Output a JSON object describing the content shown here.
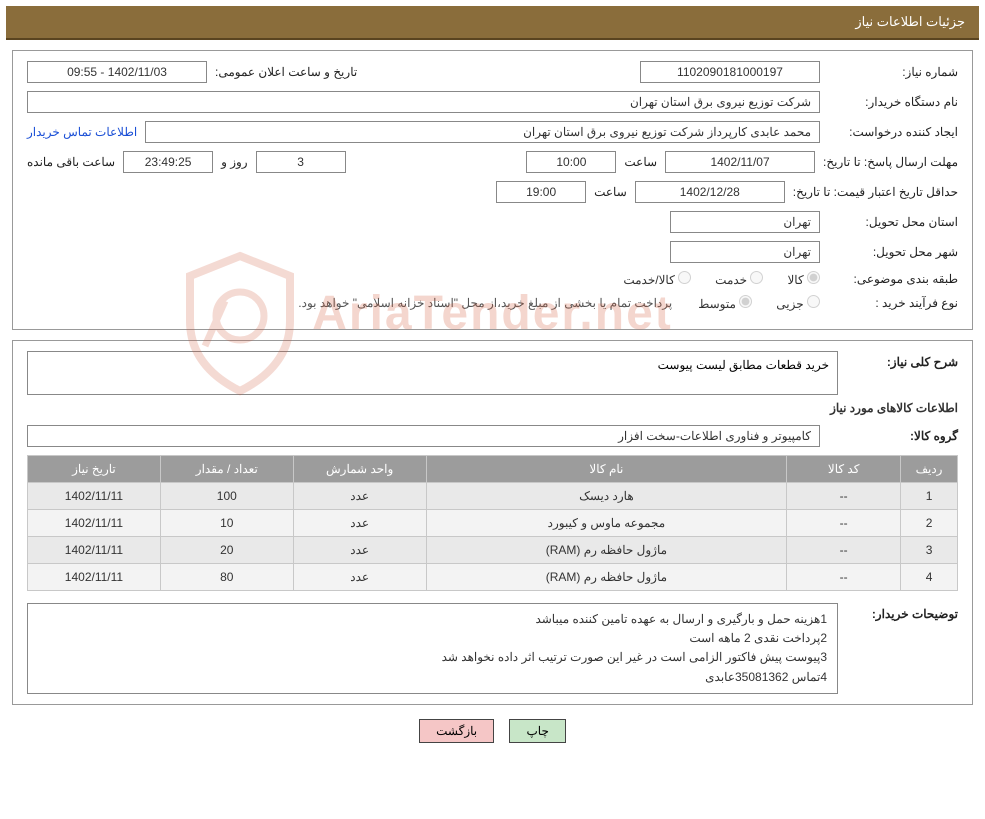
{
  "header": {
    "title": "جزئیات اطلاعات نیاز"
  },
  "fields": {
    "need_number_label": "شماره نیاز:",
    "need_number": "1102090181000197",
    "announce_label": "تاریخ و ساعت اعلان عمومی:",
    "announce_value": "1402/11/03 - 09:55",
    "buyer_org_label": "نام دستگاه خریدار:",
    "buyer_org": "شرکت توزیع نیروی برق استان تهران",
    "requester_label": "ایجاد کننده درخواست:",
    "requester": "محمد عابدی کارپرداز شرکت توزیع نیروی برق استان تهران",
    "contact_link": "اطلاعات تماس خریدار",
    "deadline_label": "مهلت ارسال پاسخ: تا تاریخ:",
    "deadline_date": "1402/11/07",
    "time_label": "ساعت",
    "deadline_time": "10:00",
    "days_and": "روز و",
    "days_value": "3",
    "countdown": "23:49:25",
    "remaining": "ساعت باقی مانده",
    "validity_label": "حداقل تاریخ اعتبار قیمت: تا تاریخ:",
    "validity_date": "1402/12/28",
    "validity_time": "19:00",
    "province_label": "استان محل تحویل:",
    "province": "تهران",
    "city_label": "شهر محل تحویل:",
    "city": "تهران",
    "category_label": "طبقه بندی موضوعی:",
    "cat_goods": "کالا",
    "cat_service": "خدمت",
    "cat_goods_service": "کالا/خدمت",
    "process_label": "نوع فرآیند خرید :",
    "proc_partial": "جزیی",
    "proc_medium": "متوسط",
    "payment_note": "پرداخت تمام یا بخشی از مبلغ خرید،از محل \"اسناد خزانه اسلامی\" خواهد بود."
  },
  "detail": {
    "desc_label": "شرح کلی نیاز:",
    "desc_text": "خرید قطعات مطابق لیست پیوست",
    "items_heading": "اطلاعات کالاهای مورد نیاز",
    "group_label": "گروه کالا:",
    "group_value": "کامپیوتر و فناوری اطلاعات-سخت افزار"
  },
  "table": {
    "columns": [
      "ردیف",
      "کد کالا",
      "نام کالا",
      "واحد شمارش",
      "تعداد / مقدار",
      "تاریخ نیاز"
    ],
    "rows": [
      [
        "1",
        "--",
        "هارد دیسک",
        "عدد",
        "100",
        "1402/11/11"
      ],
      [
        "2",
        "--",
        "مجموعه ماوس و کیبورد",
        "عدد",
        "10",
        "1402/11/11"
      ],
      [
        "3",
        "--",
        "ماژول حافظه رم (RAM)",
        "عدد",
        "20",
        "1402/11/11"
      ],
      [
        "4",
        "--",
        "ماژول حافظه رم (RAM)",
        "عدد",
        "80",
        "1402/11/11"
      ]
    ],
    "header_bg": "#9c9c9c",
    "header_color": "#ffffff",
    "row_even_bg": "#f3f3f3",
    "row_odd_bg": "#e9e9e9"
  },
  "buyer_notes": {
    "label": "توضیحات خریدار:",
    "lines": [
      "1هزینه حمل و بارگیری و ارسال به عهده تامین کننده میباشد",
      "2پرداخت نقدی 2 ماهه است",
      "3پیوست پیش فاکتور الزامی است در غیر این صورت ترتیب اثر داده نخواهد شد",
      "4تماس 35081362عابدی"
    ]
  },
  "footer": {
    "print": "چاپ",
    "back": "بازگشت"
  },
  "watermark": {
    "text": "AriaTender.net",
    "shield_stroke": "#d25a3c"
  },
  "colors": {
    "header_bg": "#8a6d3b",
    "header_border": "#5a4420",
    "link": "#1a4fd6",
    "btn_print_bg": "#c8e6c8",
    "btn_back_bg": "#f5c6c6"
  }
}
